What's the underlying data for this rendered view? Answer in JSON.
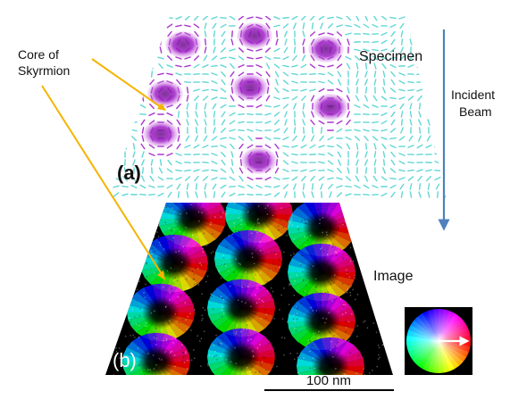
{
  "labels": {
    "core": [
      "Core of",
      "Skyrmion"
    ],
    "specimen": "Specimen",
    "beam": [
      "Incident",
      "Beam"
    ],
    "image": "Image",
    "panel_a": "(a)",
    "panel_b": "(b)",
    "scale_bar": "100 nm"
  },
  "colors": {
    "pointer": "#f5b400",
    "beam_arrow": "#4f81bd",
    "skyrmion_core": "#a020c8",
    "spin_field": "#2ec9c9",
    "image_background": "#000000",
    "wheel_arrow": "#ffffff"
  },
  "icons": {
    "color_wheel": "color-wheel-icon"
  }
}
